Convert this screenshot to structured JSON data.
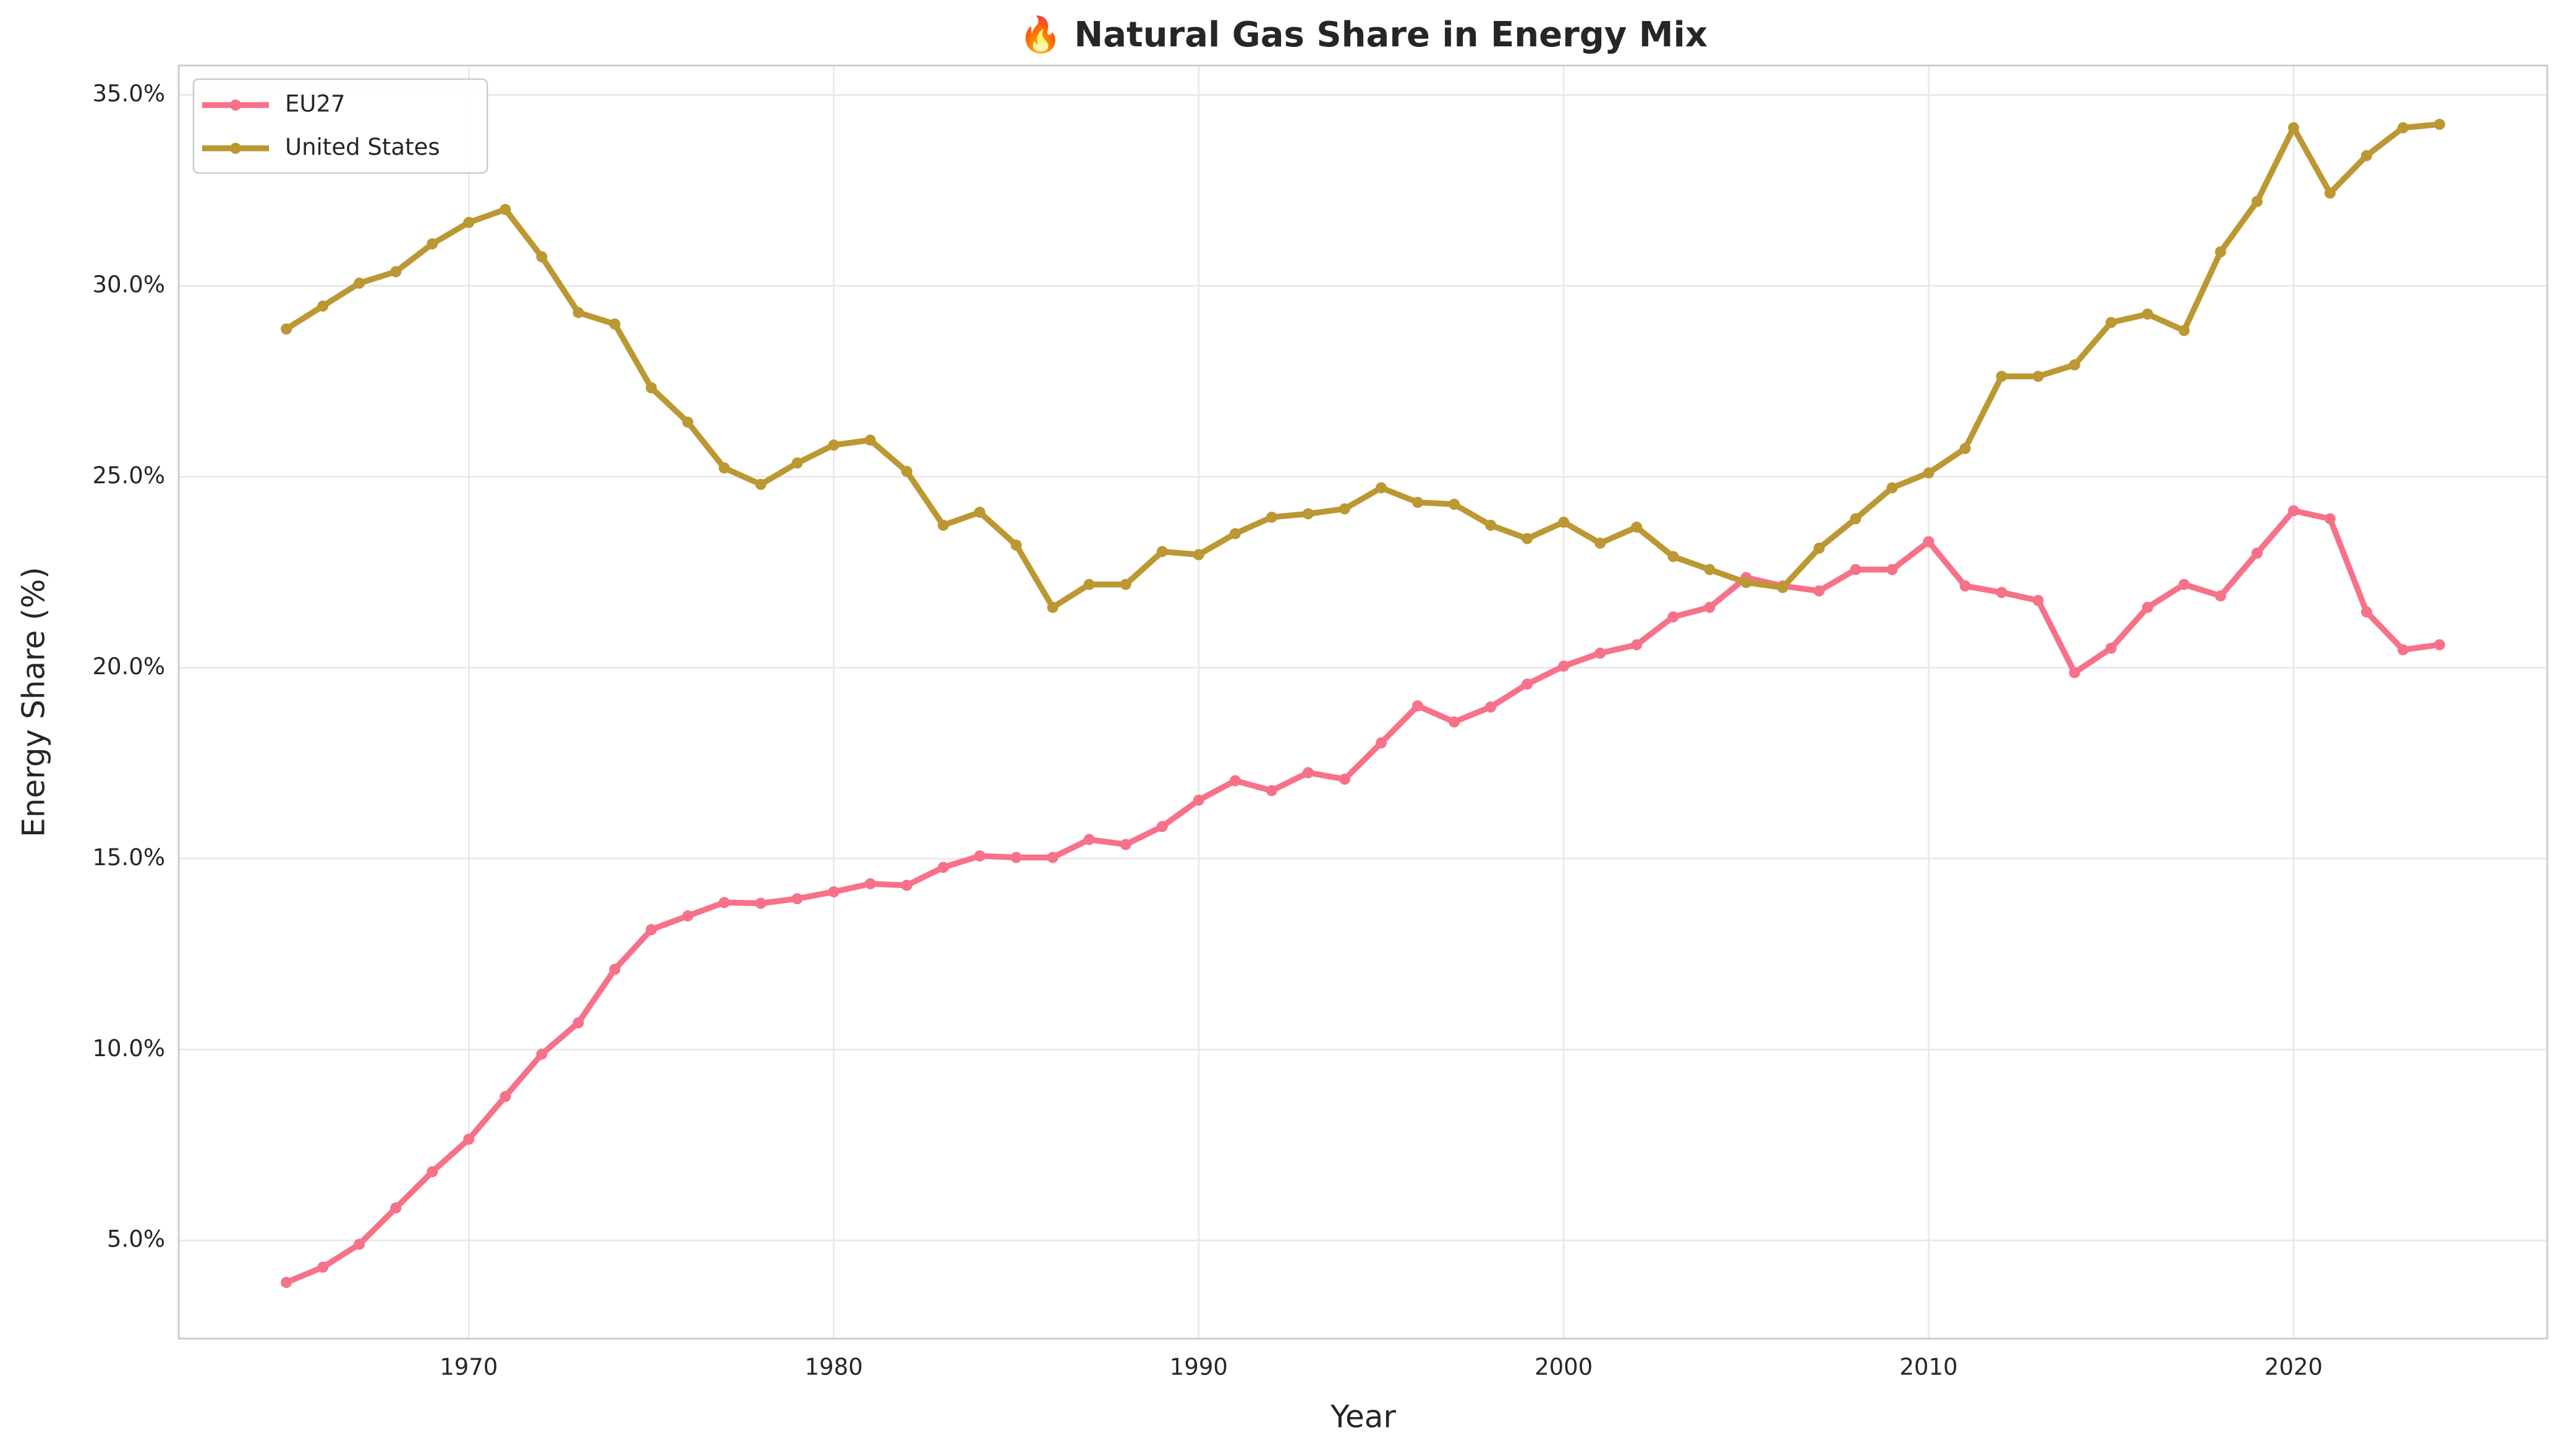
{
  "chart_data": {
    "type": "line",
    "title": "🔥 Natural Gas Share in Energy Mix",
    "xlabel": "Year",
    "ylabel": "Energy Share (%)",
    "x": [
      1965,
      1966,
      1967,
      1968,
      1969,
      1970,
      1971,
      1972,
      1973,
      1974,
      1975,
      1976,
      1977,
      1978,
      1979,
      1980,
      1981,
      1982,
      1983,
      1984,
      1985,
      1986,
      1987,
      1988,
      1989,
      1990,
      1991,
      1992,
      1993,
      1994,
      1995,
      1996,
      1997,
      1998,
      1999,
      2000,
      2001,
      2002,
      2003,
      2004,
      2005,
      2006,
      2007,
      2008,
      2009,
      2010,
      2011,
      2012,
      2013,
      2014,
      2015,
      2016,
      2017,
      2018,
      2019,
      2020,
      2021,
      2022,
      2023,
      2024
    ],
    "series": [
      {
        "name": "EU27",
        "color": "#f77189",
        "values": [
          3.9,
          4.3,
          4.9,
          5.85,
          6.8,
          7.65,
          8.77,
          9.88,
          10.7,
          12.1,
          13.14,
          13.5,
          13.85,
          13.83,
          13.95,
          14.13,
          14.34,
          14.3,
          14.77,
          15.07,
          15.03,
          15.03,
          15.5,
          15.37,
          15.84,
          16.53,
          17.04,
          16.78,
          17.25,
          17.08,
          18.03,
          19.0,
          18.58,
          18.97,
          19.57,
          20.04,
          20.38,
          20.6,
          21.33,
          21.58,
          22.36,
          22.14,
          22.01,
          22.57,
          22.57,
          23.3,
          22.14,
          21.97,
          21.76,
          19.87,
          20.51,
          21.58,
          22.18,
          21.88,
          23.0,
          24.11,
          23.9,
          21.46,
          20.47,
          20.6
        ]
      },
      {
        "name": "United States",
        "color": "#bb9832",
        "values": [
          28.87,
          29.47,
          30.07,
          30.37,
          31.1,
          31.66,
          32.0,
          30.76,
          29.3,
          29.0,
          27.33,
          26.43,
          25.23,
          24.8,
          25.36,
          25.83,
          25.96,
          25.14,
          23.73,
          24.07,
          23.21,
          21.58,
          22.18,
          22.18,
          23.04,
          22.96,
          23.51,
          23.94,
          24.03,
          24.16,
          24.71,
          24.33,
          24.28,
          23.73,
          23.38,
          23.81,
          23.26,
          23.68,
          22.91,
          22.57,
          22.23,
          22.1,
          23.13,
          23.9,
          24.71,
          25.1,
          25.74,
          27.63,
          27.63,
          27.93,
          29.04,
          29.26,
          28.83,
          30.89,
          32.21,
          34.14,
          32.43,
          33.41,
          34.14,
          34.23
        ]
      }
    ],
    "xlim": [
      1962.05,
      2026.95
    ],
    "xticks": [
      1970,
      1980,
      1990,
      2000,
      2010,
      2020
    ],
    "ylim": [
      2.43,
      35.77
    ],
    "yticks": [
      {
        "value": 5,
        "label": "5.0%"
      },
      {
        "value": 10,
        "label": "10.0%"
      },
      {
        "value": 15,
        "label": "15.0%"
      },
      {
        "value": 20,
        "label": "20.0%"
      },
      {
        "value": 25,
        "label": "25.0%"
      },
      {
        "value": 30,
        "label": "30.0%"
      },
      {
        "value": 35,
        "label": "35.0%"
      }
    ],
    "grid": true,
    "legend": "upper left"
  }
}
